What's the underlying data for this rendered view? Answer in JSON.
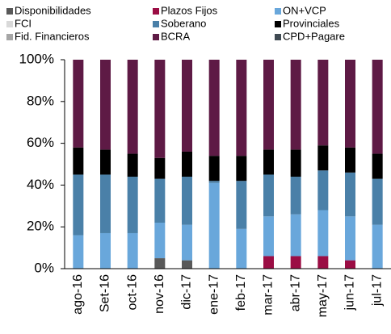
{
  "chart_data": {
    "type": "stacked_bar",
    "categories": [
      "ago-16",
      "Set-16",
      "oct-16",
      "nov-16",
      "dic-17",
      "ene-17",
      "feb-17",
      "mar-17",
      "abr-17",
      "may-17",
      "jun-17",
      "jul-17"
    ],
    "series": [
      {
        "name": "Disponibilidades",
        "color": "#595959",
        "values": [
          0,
          0,
          0,
          5,
          4,
          0,
          0,
          0,
          0,
          0,
          0,
          0
        ]
      },
      {
        "name": "Plazos Fijos",
        "color": "#9b0d44",
        "values": [
          0,
          0,
          0,
          0,
          0,
          0,
          0,
          6,
          6,
          6,
          4,
          0
        ]
      },
      {
        "name": "ON+VCP",
        "color": "#69a7db",
        "values": [
          16,
          17,
          17,
          17,
          17,
          41,
          19,
          19,
          20,
          22,
          21,
          21
        ]
      },
      {
        "name": "FCI",
        "color": "#d9d9d9",
        "values": [
          0,
          0,
          0,
          0,
          0,
          0,
          0,
          0,
          0,
          0,
          0,
          0
        ]
      },
      {
        "name": "Soberano",
        "color": "#4a80a8",
        "values": [
          29,
          28,
          27,
          21,
          23,
          1,
          23,
          20,
          18,
          19,
          21,
          22
        ]
      },
      {
        "name": "Provinciales",
        "color": "#000000",
        "values": [
          13,
          12,
          11,
          10,
          12,
          12,
          12,
          12,
          13,
          12,
          12,
          12
        ]
      },
      {
        "name": "Fid. Financieros",
        "color": "#a6a6a6",
        "values": [
          0,
          0,
          0,
          0,
          0,
          0,
          0,
          0,
          0,
          0,
          0,
          0
        ]
      },
      {
        "name": "BCRA",
        "color": "#5e1a45",
        "values": [
          42,
          43,
          45,
          47,
          44,
          46,
          46,
          43,
          43,
          41,
          42,
          45
        ]
      },
      {
        "name": "CPD+Pagare",
        "color": "#3f4a52",
        "values": [
          0,
          0,
          0,
          0,
          0,
          0,
          0,
          0,
          0,
          0,
          0,
          0
        ]
      }
    ],
    "ylim": [
      0,
      100
    ],
    "yticks": [
      {
        "value": 0,
        "label": "0%"
      },
      {
        "value": 20,
        "label": "20%"
      },
      {
        "value": 40,
        "label": "40%"
      },
      {
        "value": 60,
        "label": "60%"
      },
      {
        "value": 80,
        "label": "80%"
      },
      {
        "value": 100,
        "label": "100%"
      }
    ]
  }
}
